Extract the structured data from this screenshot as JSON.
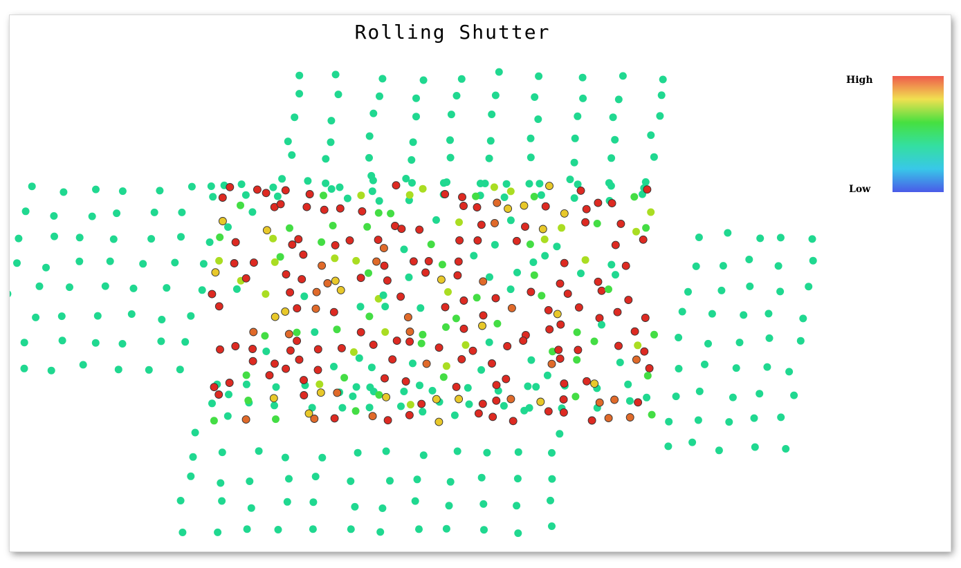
{
  "chart_data": {
    "type": "scatter",
    "title": "Rolling Shutter",
    "xlim": [
      0,
      1360
    ],
    "ylim": [
      0,
      776
    ],
    "colorbar": {
      "high_label": "High",
      "low_label": "Low",
      "colors": [
        "#ef5a4c",
        "#f0e050",
        "#46e040",
        "#34dfa0",
        "#38c8e8",
        "#4a5ae8"
      ]
    },
    "value_colors": {
      "low": "#20d890",
      "mid_low": "#44dd44",
      "mid": "#aadd22",
      "mid_high": "#e8c82a",
      "high_orange": "#e06a2a",
      "high": "#dd2a22"
    },
    "high_region_grid": {
      "x0": 300,
      "y0": 255,
      "cols": 26,
      "rows": 14,
      "dx": 25,
      "dy": 25
    }
  }
}
